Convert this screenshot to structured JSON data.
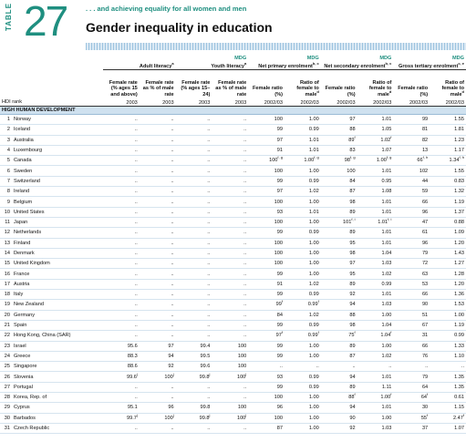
{
  "header": {
    "table_label": "TABLE",
    "table_number": "27",
    "tagline": ". . . and achieving equality for all women and men",
    "title": "Gender inequality in education"
  },
  "table": {
    "groups": [
      {
        "label": "Adult literacy",
        "note": "a"
      },
      {
        "mdg": "MDG",
        "label": "Youth literacy",
        "note": "a"
      },
      {
        "mdg": "MDG",
        "label": "Net primary enrolment",
        "note": "b, c"
      },
      {
        "mdg": "MDG",
        "label": "Net secondary enrolment",
        "note": "b, c"
      },
      {
        "mdg": "MDG",
        "label": "Gross tertiary enrolment",
        "note": "c, e"
      }
    ],
    "columns": [
      {
        "label": "Female rate (% ages 15 and above)",
        "year": "2003"
      },
      {
        "label": "Female rate as % of male rate",
        "year": "2003"
      },
      {
        "label": "Female rate (% ages 15–24)",
        "year": "2003"
      },
      {
        "label": "Female rate as % of male rate",
        "year": "2003"
      },
      {
        "label": "Female ratio (%)",
        "year": "2002/03"
      },
      {
        "label": "Ratio of female to male",
        "note": "d",
        "year": "2002/03"
      },
      {
        "label": "Female ratio (%)",
        "year": "2002/03"
      },
      {
        "label": "Ratio of female to male",
        "note": "d",
        "year": "2002/03"
      },
      {
        "label": "Female ratio (%)",
        "year": "2002/03"
      },
      {
        "label": "Ratio of female to male",
        "note": "d",
        "year": "2002/03"
      }
    ],
    "row_header": "HDI rank",
    "section": "HIGH HUMAN DEVELOPMENT",
    "rows": [
      {
        "rank": 1,
        "country": "Norway",
        "cells": [
          "..",
          "..",
          "..",
          "..",
          "100",
          "1.00",
          "97",
          "1.01",
          "99",
          "1.55"
        ]
      },
      {
        "rank": 2,
        "country": "Iceland",
        "cells": [
          "..",
          "..",
          "..",
          "..",
          "99",
          "0.99",
          "88",
          "1.05",
          "81",
          "1.81"
        ]
      },
      {
        "rank": 3,
        "country": "Australia",
        "cells": [
          "..",
          "..",
          "..",
          "..",
          "97",
          "1.01",
          {
            "value": "89",
            "note": "f"
          },
          {
            "value": "1.02",
            "note": "f"
          },
          "82",
          "1.23"
        ]
      },
      {
        "rank": 4,
        "country": "Luxembourg",
        "cells": [
          "..",
          "..",
          "..",
          "..",
          "91",
          "1.01",
          "83",
          "1.07",
          "13",
          "1.17"
        ]
      },
      {
        "rank": 5,
        "country": "Canada",
        "cells": [
          "..",
          "..",
          "..",
          "..",
          {
            "value": "100",
            "note": "f, g"
          },
          {
            "value": "1.00",
            "note": "f, g"
          },
          {
            "value": "98",
            "note": "f, g"
          },
          {
            "value": "1.00",
            "note": "f, g"
          },
          {
            "value": "66",
            "note": "f, h"
          },
          {
            "value": "1.34",
            "note": "f, h"
          }
        ]
      },
      {
        "rank": 6,
        "country": "Sweden",
        "cells": [
          "..",
          "..",
          "..",
          "..",
          "100",
          "1.00",
          "100",
          "1.01",
          "102",
          "1.55"
        ]
      },
      {
        "rank": 7,
        "country": "Switzerland",
        "cells": [
          "..",
          "..",
          "..",
          "..",
          "99",
          "0.99",
          "84",
          "0.95",
          "44",
          "0.83"
        ]
      },
      {
        "rank": 8,
        "country": "Ireland",
        "cells": [
          "..",
          "..",
          "..",
          "..",
          "97",
          "1.02",
          "87",
          "1.08",
          "59",
          "1.32"
        ]
      },
      {
        "rank": 9,
        "country": "Belgium",
        "cells": [
          "..",
          "..",
          "..",
          "..",
          "100",
          "1.00",
          "98",
          "1.01",
          "66",
          "1.19"
        ]
      },
      {
        "rank": 10,
        "country": "United States",
        "cells": [
          "..",
          "..",
          "..",
          "..",
          "93",
          "1.01",
          "89",
          "1.01",
          "96",
          "1.37"
        ]
      },
      {
        "rank": 11,
        "country": "Japan",
        "cells": [
          "..",
          "..",
          "..",
          "..",
          "100",
          "1.00",
          {
            "value": "101",
            "note": "f, i"
          },
          {
            "value": "1.01",
            "note": "f, i"
          },
          "47",
          "0.88"
        ]
      },
      {
        "rank": 12,
        "country": "Netherlands",
        "cells": [
          "..",
          "..",
          "..",
          "..",
          "99",
          "0.99",
          "89",
          "1.01",
          "61",
          "1.09"
        ]
      },
      {
        "rank": 13,
        "country": "Finland",
        "cells": [
          "..",
          "..",
          "..",
          "..",
          "100",
          "1.00",
          "95",
          "1.01",
          "96",
          "1.20"
        ]
      },
      {
        "rank": 14,
        "country": "Denmark",
        "cells": [
          "..",
          "..",
          "..",
          "..",
          "100",
          "1.00",
          "98",
          "1.04",
          "79",
          "1.43"
        ]
      },
      {
        "rank": 15,
        "country": "United Kingdom",
        "cells": [
          "..",
          "..",
          "..",
          "..",
          "100",
          "1.00",
          "97",
          "1.03",
          "72",
          "1.27"
        ]
      },
      {
        "rank": 16,
        "country": "France",
        "cells": [
          "..",
          "..",
          "..",
          "..",
          "99",
          "1.00",
          "95",
          "1.02",
          "63",
          "1.28"
        ]
      },
      {
        "rank": 17,
        "country": "Austria",
        "cells": [
          "..",
          "..",
          "..",
          "..",
          "91",
          "1.02",
          "89",
          "0.99",
          "53",
          "1.20"
        ]
      },
      {
        "rank": 18,
        "country": "Italy",
        "cells": [
          "..",
          "..",
          "..",
          "..",
          "99",
          "0.99",
          "92",
          "1.01",
          "66",
          "1.36"
        ]
      },
      {
        "rank": 19,
        "country": "New Zealand",
        "cells": [
          "..",
          "..",
          "..",
          "..",
          {
            "value": "99",
            "note": "f"
          },
          {
            "value": "0.99",
            "note": "f"
          },
          "94",
          "1.03",
          "90",
          "1.53"
        ]
      },
      {
        "rank": 20,
        "country": "Germany",
        "cells": [
          "..",
          "..",
          "..",
          "..",
          "84",
          "1.02",
          "88",
          "1.00",
          "51",
          "1.00"
        ]
      },
      {
        "rank": 21,
        "country": "Spain",
        "cells": [
          "..",
          "..",
          "..",
          "..",
          "99",
          "0.99",
          "98",
          "1.04",
          "67",
          "1.19"
        ]
      },
      {
        "rank": 22,
        "country": "Hong Kong, China (SAR)",
        "cells": [
          "..",
          "..",
          "..",
          "..",
          {
            "value": "97",
            "note": "f"
          },
          {
            "value": "0.99",
            "note": "f"
          },
          {
            "value": "75",
            "note": "f"
          },
          {
            "value": "1.04",
            "note": "f"
          },
          "31",
          "0.99"
        ]
      },
      {
        "rank": 23,
        "country": "Israel",
        "cells": [
          "95.6",
          "97",
          "99.4",
          "100",
          "99",
          "1.00",
          "89",
          "1.00",
          "66",
          "1.33"
        ]
      },
      {
        "rank": 24,
        "country": "Greece",
        "cells": [
          "88.3",
          "94",
          "99.5",
          "100",
          "99",
          "1.00",
          "87",
          "1.02",
          "76",
          "1.10"
        ]
      },
      {
        "rank": 25,
        "country": "Singapore",
        "cells": [
          "88.6",
          "92",
          "99.6",
          "100",
          "..",
          "..",
          "..",
          "..",
          "..",
          ".."
        ]
      },
      {
        "rank": 26,
        "country": "Slovenia",
        "cells": [
          {
            "value": "99.6",
            "note": "j"
          },
          {
            "value": "100",
            "note": "j"
          },
          {
            "value": "99.8",
            "note": "j"
          },
          {
            "value": "100",
            "note": "j"
          },
          "93",
          "0.99",
          "94",
          "1.01",
          "79",
          "1.35"
        ]
      },
      {
        "rank": 27,
        "country": "Portugal",
        "cells": [
          "..",
          "..",
          "..",
          "..",
          "99",
          "0.99",
          "89",
          "1.11",
          "64",
          "1.35"
        ]
      },
      {
        "rank": 28,
        "country": "Korea, Rep. of",
        "cells": [
          "..",
          "..",
          "..",
          "..",
          "100",
          "1.00",
          {
            "value": "88",
            "note": "f"
          },
          {
            "value": "1.00",
            "note": "f"
          },
          {
            "value": "64",
            "note": "f"
          },
          "0.61"
        ]
      },
      {
        "rank": 29,
        "country": "Cyprus",
        "cells": [
          "95.1",
          "96",
          "99.8",
          "100",
          "96",
          "1.00",
          "94",
          "1.01",
          "30",
          "1.15"
        ]
      },
      {
        "rank": 30,
        "country": "Barbados",
        "cells": [
          {
            "value": "99.7",
            "note": "j"
          },
          {
            "value": "100",
            "note": "j"
          },
          {
            "value": "99.8",
            "note": "j"
          },
          {
            "value": "100",
            "note": "j"
          },
          "100",
          "1.00",
          "90",
          "1.00",
          {
            "value": "55",
            "note": "f"
          },
          {
            "value": "2.47",
            "note": "f"
          }
        ]
      },
      {
        "rank": 31,
        "country": "Czech Republic",
        "cells": [
          "..",
          "..",
          "..",
          "..",
          "87",
          "1.00",
          "92",
          "1.03",
          "37",
          "1.07"
        ]
      }
    ]
  }
}
